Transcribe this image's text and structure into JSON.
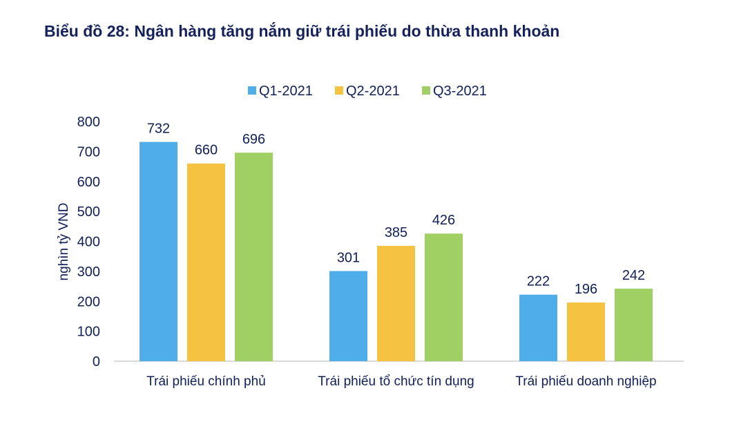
{
  "chart_data": {
    "type": "bar",
    "title": "Biểu đồ 28: Ngân hàng tăng nắm giữ trái phiếu do thừa thanh khoản",
    "ylabel": "nghìn tỷ VND",
    "xlabel": "",
    "ylim": [
      0,
      800
    ],
    "yticks": [
      0,
      100,
      200,
      300,
      400,
      500,
      600,
      700,
      800
    ],
    "grid": false,
    "legend": "top-center",
    "categories": [
      "Trái phiếu chính phủ",
      "Trái phiếu tổ chức tín dụng",
      "Trái phiếu doanh nghiệp"
    ],
    "series": [
      {
        "name": "Q1-2021",
        "color": "#4FAEEA",
        "values": [
          732,
          301,
          222
        ]
      },
      {
        "name": "Q2-2021",
        "color": "#F5C242",
        "values": [
          660,
          385,
          196
        ]
      },
      {
        "name": "Q3-2021",
        "color": "#A0CF63",
        "values": [
          696,
          426,
          242
        ]
      }
    ]
  }
}
